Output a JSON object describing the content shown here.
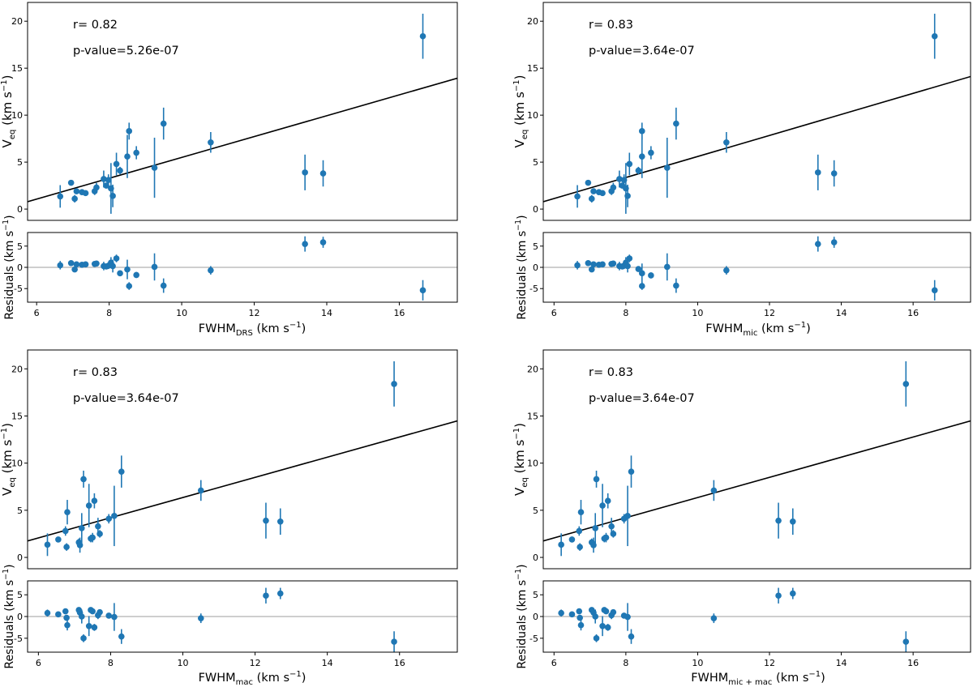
{
  "colors": {
    "marker": "#1f77b4",
    "fit": "#000000",
    "zero_line": "#b0b0b0",
    "axes": "#000000"
  },
  "ylabel_main": [
    "V",
    "eq",
    " (km s",
    "−1",
    ")"
  ],
  "ylabel_resid": [
    "Residuals (km s",
    "−1",
    ")"
  ],
  "chart_data": [
    {
      "type": "scatter",
      "title": "",
      "stats": {
        "r": "r= 0.82",
        "p": "p-value=5.26e-07"
      },
      "xlabel": [
        "FWHM",
        "DRS",
        " (km s",
        "−1",
        ")"
      ],
      "xlim": [
        5.75,
        17.6
      ],
      "xticks": [
        6,
        8,
        10,
        12,
        14,
        16
      ],
      "ylim": [
        -1.2,
        22
      ],
      "yticks": [
        0,
        5,
        10,
        15,
        20
      ],
      "rlim": [
        -8.2,
        8.2
      ],
      "rticks": [
        -5,
        0,
        5
      ],
      "fit": {
        "slope": 1.11,
        "intercept": -5.6
      },
      "x": [
        6.65,
        6.95,
        7.05,
        7.1,
        7.25,
        7.35,
        7.6,
        7.65,
        7.85,
        7.92,
        7.98,
        8.05,
        8.1,
        8.2,
        8.3,
        8.5,
        8.55,
        8.75,
        9.25,
        9.5,
        10.8,
        13.4,
        13.9,
        16.65
      ],
      "y": [
        1.35,
        2.8,
        1.1,
        1.9,
        1.8,
        1.7,
        1.9,
        2.3,
        3.2,
        2.5,
        3.1,
        2.2,
        1.4,
        4.8,
        4.1,
        5.6,
        8.3,
        6.0,
        4.4,
        9.1,
        7.1,
        3.9,
        3.8,
        18.4
      ],
      "yerr": [
        1.2,
        0.3,
        0.4,
        0.3,
        0.3,
        0.3,
        0.4,
        0.5,
        0.9,
        0.3,
        0.6,
        2.7,
        1.2,
        1.2,
        0.4,
        2.3,
        0.9,
        0.7,
        3.2,
        1.7,
        1.1,
        1.9,
        1.4,
        2.4
      ],
      "residuals": [
        0.5,
        1.0,
        -0.5,
        0.7,
        0.6,
        0.7,
        0.8,
        0.9,
        0.3,
        0.2,
        0.4,
        1.1,
        0.3,
        2.1,
        -1.4,
        -0.5,
        -4.4,
        -1.8,
        0.1,
        -4.3,
        -0.7,
        5.5,
        5.9,
        -5.4
      ],
      "rerr": [
        1.0,
        0.5,
        0.5,
        0.4,
        0.3,
        0.3,
        0.4,
        0.5,
        1.0,
        0.4,
        0.8,
        1.3,
        1.5,
        0.9,
        0.5,
        2.3,
        0.9,
        0.7,
        3.2,
        1.7,
        1.0,
        1.8,
        1.3,
        2.4
      ]
    },
    {
      "type": "scatter",
      "title": "",
      "stats": {
        "r": "r= 0.83",
        "p": "p-value=3.64e-07"
      },
      "xlabel": [
        "FWHM",
        "mic",
        " (km s",
        "−1",
        ")"
      ],
      "xlim": [
        5.7,
        17.6
      ],
      "xticks": [
        6,
        8,
        10,
        12,
        14,
        16
      ],
      "ylim": [
        -1.2,
        22
      ],
      "yticks": [
        0,
        5,
        10,
        15,
        20
      ],
      "rlim": [
        -8.2,
        8.2
      ],
      "rticks": [
        -5,
        0,
        5
      ],
      "fit": {
        "slope": 1.12,
        "intercept": -5.6
      },
      "x": [
        6.65,
        6.95,
        7.05,
        7.1,
        7.25,
        7.35,
        7.6,
        7.65,
        7.82,
        7.9,
        7.95,
        8.0,
        8.05,
        8.1,
        8.35,
        8.45,
        8.45,
        8.7,
        9.15,
        9.4,
        10.8,
        13.35,
        13.8,
        16.6
      ],
      "y": [
        1.35,
        2.8,
        1.1,
        1.9,
        1.8,
        1.7,
        1.9,
        2.3,
        3.2,
        2.5,
        3.1,
        2.2,
        1.4,
        4.8,
        4.1,
        5.6,
        8.3,
        6.0,
        4.4,
        9.1,
        7.1,
        3.9,
        3.8,
        18.4
      ],
      "yerr": [
        1.2,
        0.3,
        0.4,
        0.3,
        0.3,
        0.3,
        0.4,
        0.5,
        0.9,
        0.3,
        0.6,
        2.7,
        1.2,
        1.2,
        0.4,
        2.3,
        0.9,
        0.7,
        3.2,
        1.7,
        1.1,
        1.9,
        1.4,
        2.4
      ],
      "residuals": [
        0.5,
        1.0,
        -0.5,
        0.7,
        0.6,
        0.7,
        0.8,
        0.9,
        0.3,
        0.2,
        0.4,
        1.1,
        0.3,
        2.1,
        -0.4,
        -4.4,
        -1.4,
        -1.9,
        0.1,
        -4.3,
        -0.7,
        5.5,
        5.9,
        -5.4
      ],
      "rerr": [
        1.0,
        0.5,
        0.5,
        0.4,
        0.3,
        0.3,
        0.4,
        0.5,
        1.0,
        0.4,
        0.8,
        1.3,
        1.5,
        0.9,
        0.5,
        0.9,
        2.3,
        0.7,
        3.2,
        1.7,
        1.0,
        1.8,
        1.3,
        2.4
      ]
    },
    {
      "type": "scatter",
      "title": "",
      "stats": {
        "r": "r= 0.83",
        "p": "p-value=3.64e-07"
      },
      "xlabel": [
        "FWHM",
        "mac",
        " (km s",
        "−1",
        ")"
      ],
      "xlim": [
        5.7,
        17.6
      ],
      "xticks": [
        6,
        8,
        10,
        12,
        14,
        16
      ],
      "ylim": [
        -1.2,
        22
      ],
      "yticks": [
        0,
        5,
        10,
        15,
        20
      ],
      "rlim": [
        -8.2,
        8.2
      ],
      "rticks": [
        -5,
        0,
        5
      ],
      "fit": {
        "slope": 1.07,
        "intercept": -4.35
      },
      "x": [
        6.25,
        6.55,
        6.75,
        6.78,
        6.8,
        7.12,
        7.15,
        7.2,
        7.25,
        7.4,
        7.45,
        7.5,
        7.55,
        7.65,
        7.7,
        7.95,
        8.1,
        8.3,
        10.5,
        12.3,
        12.7,
        15.85
      ],
      "y": [
        1.35,
        1.9,
        2.8,
        1.1,
        4.8,
        1.6,
        1.3,
        3.1,
        8.3,
        5.5,
        2.0,
        2.1,
        6.0,
        3.3,
        2.5,
        4.1,
        4.4,
        9.1,
        7.1,
        3.9,
        3.8,
        18.4
      ],
      "yerr": [
        1.2,
        0.3,
        0.5,
        0.4,
        1.3,
        0.4,
        0.8,
        1.6,
        0.9,
        2.3,
        0.4,
        0.5,
        0.8,
        0.9,
        0.4,
        0.5,
        3.2,
        1.7,
        1.1,
        1.9,
        1.4,
        2.4
      ],
      "residuals": [
        0.8,
        0.5,
        1.2,
        -0.3,
        -2.0,
        1.5,
        0.9,
        0.0,
        -5.0,
        -2.2,
        1.5,
        1.2,
        -2.5,
        0.3,
        1.0,
        0.2,
        -0.1,
        -4.6,
        -0.4,
        4.8,
        5.3,
        -5.8
      ],
      "rerr": [
        0.8,
        0.3,
        0.5,
        0.4,
        1.2,
        0.5,
        0.8,
        1.6,
        0.9,
        2.3,
        0.4,
        0.5,
        0.8,
        0.9,
        0.4,
        0.5,
        3.2,
        1.7,
        1.1,
        1.8,
        1.3,
        2.4
      ]
    },
    {
      "type": "scatter",
      "title": "",
      "stats": {
        "r": "r= 0.83",
        "p": "p-value=3.64e-07"
      },
      "xlabel": [
        "FWHM",
        "mic + mac",
        " (km s",
        "−1",
        ")"
      ],
      "xlim": [
        5.7,
        17.6
      ],
      "xticks": [
        6,
        8,
        10,
        12,
        14,
        16
      ],
      "ylim": [
        -1.2,
        22
      ],
      "yticks": [
        0,
        5,
        10,
        15,
        20
      ],
      "rlim": [
        -8.2,
        8.2
      ],
      "rticks": [
        -5,
        0,
        5
      ],
      "fit": {
        "slope": 1.07,
        "intercept": -4.35
      },
      "x": [
        6.2,
        6.5,
        6.7,
        6.72,
        6.75,
        7.05,
        7.1,
        7.15,
        7.18,
        7.35,
        7.4,
        7.45,
        7.5,
        7.6,
        7.65,
        7.95,
        8.05,
        8.15,
        10.45,
        12.25,
        12.65,
        15.8
      ],
      "y": [
        1.35,
        1.9,
        2.8,
        1.1,
        4.8,
        1.6,
        1.3,
        3.1,
        8.3,
        5.5,
        2.0,
        2.1,
        6.0,
        3.3,
        2.5,
        4.1,
        4.4,
        9.1,
        7.1,
        3.9,
        3.8,
        18.4
      ],
      "yerr": [
        1.2,
        0.3,
        0.5,
        0.4,
        1.3,
        0.4,
        0.8,
        1.6,
        0.9,
        2.3,
        0.4,
        0.5,
        0.8,
        0.9,
        0.4,
        0.5,
        3.2,
        1.7,
        1.1,
        1.9,
        1.4,
        2.4
      ],
      "residuals": [
        0.8,
        0.5,
        1.2,
        -0.3,
        -2.0,
        1.5,
        0.9,
        0.0,
        -5.0,
        -2.2,
        1.5,
        1.2,
        -2.5,
        0.3,
        1.0,
        0.2,
        -0.1,
        -4.6,
        -0.4,
        4.8,
        5.3,
        -5.8
      ],
      "rerr": [
        0.8,
        0.3,
        0.5,
        0.4,
        1.2,
        0.5,
        0.8,
        1.6,
        0.9,
        2.3,
        0.4,
        0.5,
        0.8,
        0.9,
        0.4,
        0.5,
        3.2,
        1.7,
        1.1,
        1.8,
        1.3,
        2.4
      ]
    }
  ]
}
